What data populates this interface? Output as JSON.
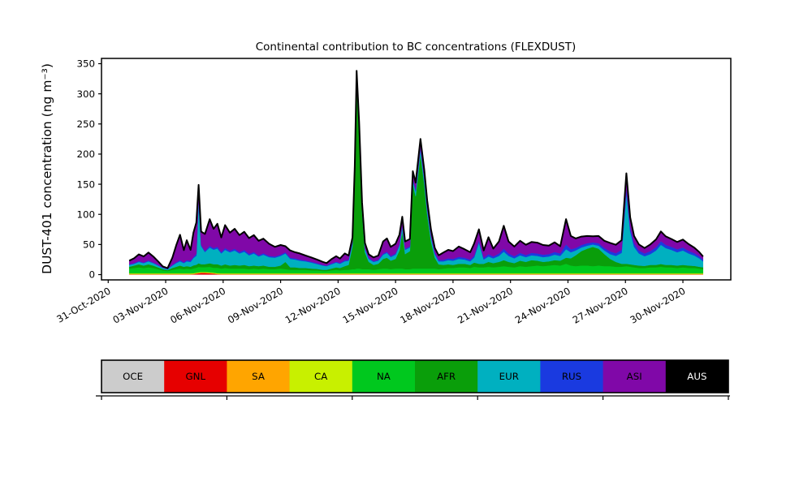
{
  "chart_data": {
    "type": "area",
    "stacked": true,
    "title": "Continental contribution to BC concentrations (FLEXDUST)",
    "ylabel": "DUST-401 concentration (ng m⁻³)",
    "xlabel": "",
    "grid": false,
    "legend_position": "bottom-bar",
    "x_unit": "days since 31-Oct-2020 00:00",
    "xlim_days": [
      -0.35,
      32.5
    ],
    "ylim": [
      -8.75,
      358.75
    ],
    "y_ticks": [
      0,
      50,
      100,
      150,
      200,
      250,
      300,
      350
    ],
    "x_ticks": [
      {
        "day": 0,
        "label": "31-Oct-2020"
      },
      {
        "day": 3,
        "label": "03-Nov-2020"
      },
      {
        "day": 6,
        "label": "06-Nov-2020"
      },
      {
        "day": 9,
        "label": "09-Nov-2020"
      },
      {
        "day": 12,
        "label": "12-Nov-2020"
      },
      {
        "day": 15,
        "label": "15-Nov-2020"
      },
      {
        "day": 18,
        "label": "18-Nov-2020"
      },
      {
        "day": 21,
        "label": "21-Nov-2020"
      },
      {
        "day": 24,
        "label": "24-Nov-2020"
      },
      {
        "day": 27,
        "label": "27-Nov-2020"
      },
      {
        "day": 30,
        "label": "30-Nov-2020"
      }
    ],
    "x_tick_label_rotation_deg": 30,
    "outline_color": "#000000",
    "x_days": [
      1.1,
      1.35,
      1.6,
      1.85,
      2.1,
      2.35,
      2.6,
      2.85,
      3.1,
      3.35,
      3.55,
      3.75,
      3.95,
      4.1,
      4.3,
      4.45,
      4.6,
      4.72,
      4.85,
      5.05,
      5.3,
      5.5,
      5.7,
      5.9,
      6.1,
      6.35,
      6.6,
      6.85,
      7.1,
      7.35,
      7.6,
      7.85,
      8.1,
      8.4,
      8.7,
      9.0,
      9.25,
      9.5,
      9.75,
      10.0,
      10.3,
      10.6,
      10.9,
      11.2,
      11.4,
      11.65,
      11.9,
      12.1,
      12.35,
      12.55,
      12.75,
      12.87,
      12.97,
      13.1,
      13.25,
      13.4,
      13.6,
      13.85,
      14.1,
      14.35,
      14.55,
      14.75,
      15.0,
      15.2,
      15.35,
      15.5,
      15.75,
      15.9,
      16.05,
      16.3,
      16.5,
      16.65,
      16.85,
      17.05,
      17.25,
      17.5,
      17.75,
      18.0,
      18.3,
      18.6,
      18.9,
      19.1,
      19.35,
      19.6,
      19.85,
      20.1,
      20.4,
      20.65,
      20.9,
      21.2,
      21.5,
      21.8,
      22.1,
      22.4,
      22.7,
      23.0,
      23.3,
      23.6,
      23.9,
      24.15,
      24.4,
      24.7,
      25.0,
      25.3,
      25.6,
      25.9,
      26.2,
      26.5,
      26.8,
      27.05,
      27.25,
      27.45,
      27.7,
      28.0,
      28.3,
      28.6,
      28.85,
      29.1,
      29.4,
      29.7,
      30.0,
      30.3,
      30.6,
      30.85,
      31.05
    ],
    "series": [
      {
        "name": "OCE",
        "color": "#cccccc",
        "legend_text_color": "#000000",
        "values": 0.3
      },
      {
        "name": "GNL",
        "color": "#e60000",
        "legend_text_color": "#000000",
        "values": [
          0.2,
          0.2,
          0.2,
          0.2,
          0.2,
          0.2,
          0.2,
          0.2,
          0.2,
          0.2,
          0.2,
          0.2,
          0.2,
          0.2,
          0.2,
          0.5,
          1.5,
          2,
          2.5,
          2.5,
          2,
          1.5,
          0.5,
          0.2,
          0.2,
          0.2,
          0.2,
          0.2,
          0.2,
          0.2,
          0.2,
          0.2,
          0.2,
          0.2,
          0.2,
          0.2,
          0.2,
          0.2,
          0.2,
          0.2,
          0.2,
          0.2,
          0.2,
          0.2,
          0.2,
          0.2,
          0.2,
          0.2,
          0.2,
          0.2,
          0.2,
          0.2,
          0.2,
          0.2,
          0.2,
          0.2,
          0.2,
          0.2,
          0.2,
          0.2,
          0.2,
          0.2,
          0.2,
          0.2,
          0.2,
          0.2,
          0.2,
          0.2,
          0.2,
          0.2,
          0.2,
          0.2,
          0.2,
          0.2,
          0.2,
          0.2,
          0.2,
          0.2,
          0.2,
          0.2,
          0.2,
          0.2,
          0.2,
          0.2,
          0.2,
          0.2,
          0.2,
          0.2,
          0.2,
          0.2,
          0.2,
          0.2,
          0.2,
          0.2,
          0.2,
          0.2,
          0.2,
          0.2,
          0.2,
          0.2,
          0.2,
          0.2,
          0.2,
          0.2,
          0.2,
          0.2,
          0.2,
          0.2,
          0.2,
          0.2,
          0.2,
          0.2,
          0.2,
          0.2,
          0.2,
          0.2,
          0.2,
          0.2,
          0.2,
          0.2,
          0.2,
          0.2,
          0.2,
          0.2,
          0.2
        ]
      },
      {
        "name": "SA",
        "color": "#ffa500",
        "legend_text_color": "#000000",
        "values": 0.8
      },
      {
        "name": "CA",
        "color": "#c8f000",
        "legend_text_color": "#000000",
        "values": 0.8
      },
      {
        "name": "NA",
        "color": "#00c81e",
        "legend_text_color": "#000000",
        "values": [
          8,
          9,
          10,
          9,
          10,
          9,
          7,
          5,
          4,
          6,
          7,
          8,
          7,
          8,
          7,
          8,
          8,
          9,
          8,
          8,
          9,
          8,
          9,
          8,
          9,
          8,
          8,
          8,
          8,
          7,
          8,
          7,
          8,
          7,
          7,
          8,
          7,
          6,
          6,
          6,
          6,
          5,
          5,
          4,
          4,
          5,
          6,
          5,
          6,
          6,
          7,
          7,
          8,
          8,
          7,
          7,
          7,
          6,
          7,
          8,
          8,
          7,
          8,
          8,
          8,
          7,
          7,
          8,
          8,
          8,
          8,
          8,
          8,
          8,
          7,
          8,
          9,
          9,
          10,
          10,
          9,
          11,
          10,
          10,
          11,
          10,
          11,
          12,
          11,
          10,
          12,
          11,
          12,
          13,
          12,
          13,
          14,
          13,
          16,
          13,
          12,
          13,
          13,
          12,
          13,
          12,
          12,
          11,
          11,
          12,
          11,
          10,
          9,
          9,
          10,
          10,
          11,
          10,
          10,
          9,
          10,
          9,
          9,
          8,
          7
        ]
      },
      {
        "name": "AFR",
        "color": "#0a9e0a",
        "legend_text_color": "#000000",
        "values": [
          3,
          4,
          5,
          4,
          5,
          4,
          3,
          2,
          1.5,
          3,
          4,
          5,
          4,
          4,
          4,
          5,
          5,
          6,
          5,
          5,
          6,
          6,
          6,
          5,
          6,
          5,
          6,
          5,
          6,
          5,
          5,
          5,
          5,
          4,
          4,
          5,
          12,
          4,
          4,
          3,
          3,
          3,
          2.5,
          2,
          2,
          3,
          4,
          4,
          6,
          8,
          38,
          155,
          310,
          225,
          95,
          28,
          12,
          8,
          9,
          16,
          18,
          14,
          16,
          30,
          62,
          25,
          30,
          140,
          120,
          190,
          140,
          90,
          45,
          18,
          8,
          6,
          6,
          5,
          6,
          6,
          5,
          7,
          6,
          6,
          8,
          7,
          8,
          10,
          8,
          7,
          9,
          8,
          10,
          8,
          7,
          7,
          8,
          8,
          10,
          12,
          18,
          24,
          28,
          32,
          28,
          20,
          12,
          8,
          5,
          4,
          4,
          4,
          4,
          3.5,
          4,
          4,
          4.5,
          4,
          4,
          4,
          4,
          4,
          3.5,
          3,
          3
        ]
      },
      {
        "name": "EUR",
        "color": "#00b0c0",
        "legend_text_color": "#000000",
        "values": [
          3,
          3,
          4,
          4,
          5,
          4,
          3,
          2,
          1.5,
          4,
          6,
          7,
          6,
          8,
          8,
          12,
          15,
          105,
          30,
          20,
          26,
          24,
          26,
          20,
          24,
          22,
          24,
          20,
          22,
          18,
          20,
          16,
          18,
          16,
          15,
          16,
          14,
          14,
          13,
          12,
          11,
          10,
          8,
          7,
          6,
          7,
          8,
          7,
          8,
          7,
          6,
          6,
          6,
          6,
          6,
          6,
          5,
          5,
          5,
          7,
          8,
          6,
          7,
          8,
          8,
          7,
          6,
          7,
          8,
          8,
          8,
          8,
          7,
          6,
          5,
          6,
          7,
          7,
          8,
          7,
          6,
          8,
          35,
          7,
          9,
          8,
          10,
          14,
          10,
          8,
          9,
          8,
          8,
          8,
          8,
          8,
          9,
          8,
          14,
          10,
          8,
          6,
          5,
          4,
          5,
          6,
          8,
          10,
          18,
          118,
          55,
          30,
          20,
          16,
          18,
          24,
          32,
          28,
          25,
          22,
          24,
          20,
          17,
          14,
          10
        ]
      },
      {
        "name": "RUS",
        "color": "#1a3ae0",
        "legend_text_color": "#000000",
        "values": [
          1,
          1,
          1.5,
          1,
          1.5,
          1,
          1,
          0.5,
          0.5,
          1,
          1.5,
          2,
          1.5,
          2,
          2,
          2,
          3,
          3,
          2,
          2,
          3,
          2.5,
          3,
          2.5,
          3,
          2.5,
          3,
          2.5,
          3,
          2.5,
          2.5,
          2,
          2.5,
          2,
          2,
          2,
          2,
          2,
          2,
          2,
          1.5,
          1.5,
          1.5,
          1,
          1,
          1.5,
          1.5,
          1.5,
          2,
          1.5,
          1.5,
          1.5,
          2,
          2,
          1.5,
          1.5,
          1.5,
          1.5,
          1.5,
          2,
          2,
          2,
          2,
          2,
          2,
          2,
          2,
          2.5,
          2.5,
          3,
          3,
          3,
          2.5,
          2,
          2,
          2.5,
          3,
          3,
          3.5,
          3,
          3,
          3.5,
          4,
          3,
          4,
          3,
          4,
          5,
          4,
          3.5,
          4,
          3.5,
          4,
          4,
          4,
          4,
          4.5,
          4,
          8,
          5,
          4,
          4,
          4,
          3.5,
          4,
          4,
          4.5,
          4.5,
          5,
          8,
          7,
          6,
          5,
          4.5,
          5,
          5.5,
          6,
          5.5,
          5,
          5,
          5,
          4.5,
          4,
          3.5,
          3
        ]
      },
      {
        "name": "ASI",
        "color": "#8008a8",
        "legend_text_color": "#000000",
        "values": [
          6,
          8,
          11,
          10,
          13,
          10,
          6,
          2,
          1,
          12,
          28,
          42,
          20,
          33,
          18,
          40,
          52,
          22,
          22,
          28,
          44,
          32,
          38,
          24,
          38,
          30,
          33,
          28,
          30,
          26,
          28,
          24,
          24,
          20,
          16,
          16,
          10,
          12,
          10,
          10,
          8,
          7,
          6,
          5,
          4,
          7,
          9,
          7,
          11,
          7,
          7,
          8,
          10,
          9,
          8,
          8,
          6,
          6,
          7,
          20,
          22,
          15,
          16,
          16,
          14,
          12,
          12,
          12,
          12,
          14,
          13,
          12,
          10,
          8,
          8,
          12,
          14,
          13,
          17,
          14,
          12,
          20,
          18,
          12,
          28,
          13,
          20,
          38,
          20,
          16,
          20,
          17,
          18,
          18,
          16,
          14,
          16,
          12,
          42,
          22,
          16,
          14,
          12,
          10,
          12,
          12,
          14,
          14,
          16,
          24,
          16,
          12,
          10,
          9,
          11,
          13,
          16,
          14,
          13,
          12,
          13,
          11,
          9,
          7,
          5
        ]
      },
      {
        "name": "AUS",
        "color": "#000000",
        "legend_text_color": "#ffffff",
        "values": 0
      }
    ]
  },
  "legend": {
    "tick_count": 6
  }
}
